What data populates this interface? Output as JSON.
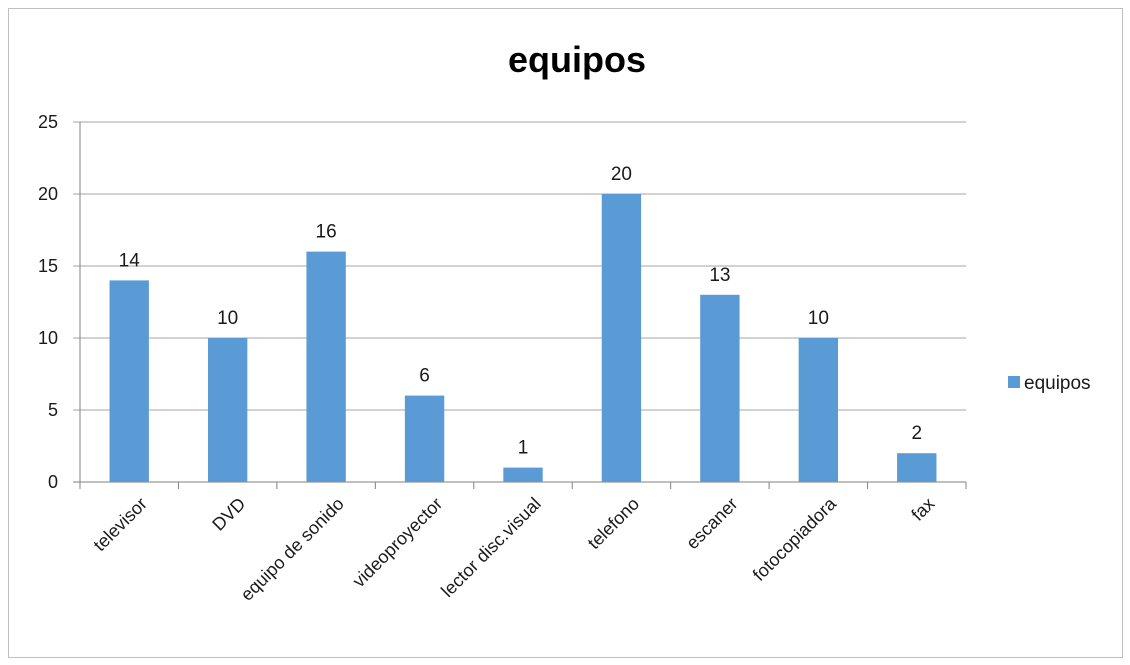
{
  "chart_data": {
    "type": "bar",
    "title": "equipos",
    "categories": [
      "televisor",
      "DVD",
      "equipo de sonido",
      "videoproyector",
      "lector disc.visual",
      "telefono",
      "escaner",
      "fotocopiadora",
      "fax"
    ],
    "series": [
      {
        "name": "equipos",
        "values": [
          14,
          10,
          16,
          6,
          1,
          20,
          13,
          10,
          2
        ]
      }
    ],
    "ylim": [
      0,
      25
    ],
    "yticks": [
      0,
      5,
      10,
      15,
      20,
      25
    ],
    "xlabel": "",
    "ylabel": "",
    "grid": true,
    "legend_position": "right",
    "colors": {
      "bar": "#5b9bd5",
      "grid": "#a6a6a6",
      "axis": "#808080"
    }
  }
}
